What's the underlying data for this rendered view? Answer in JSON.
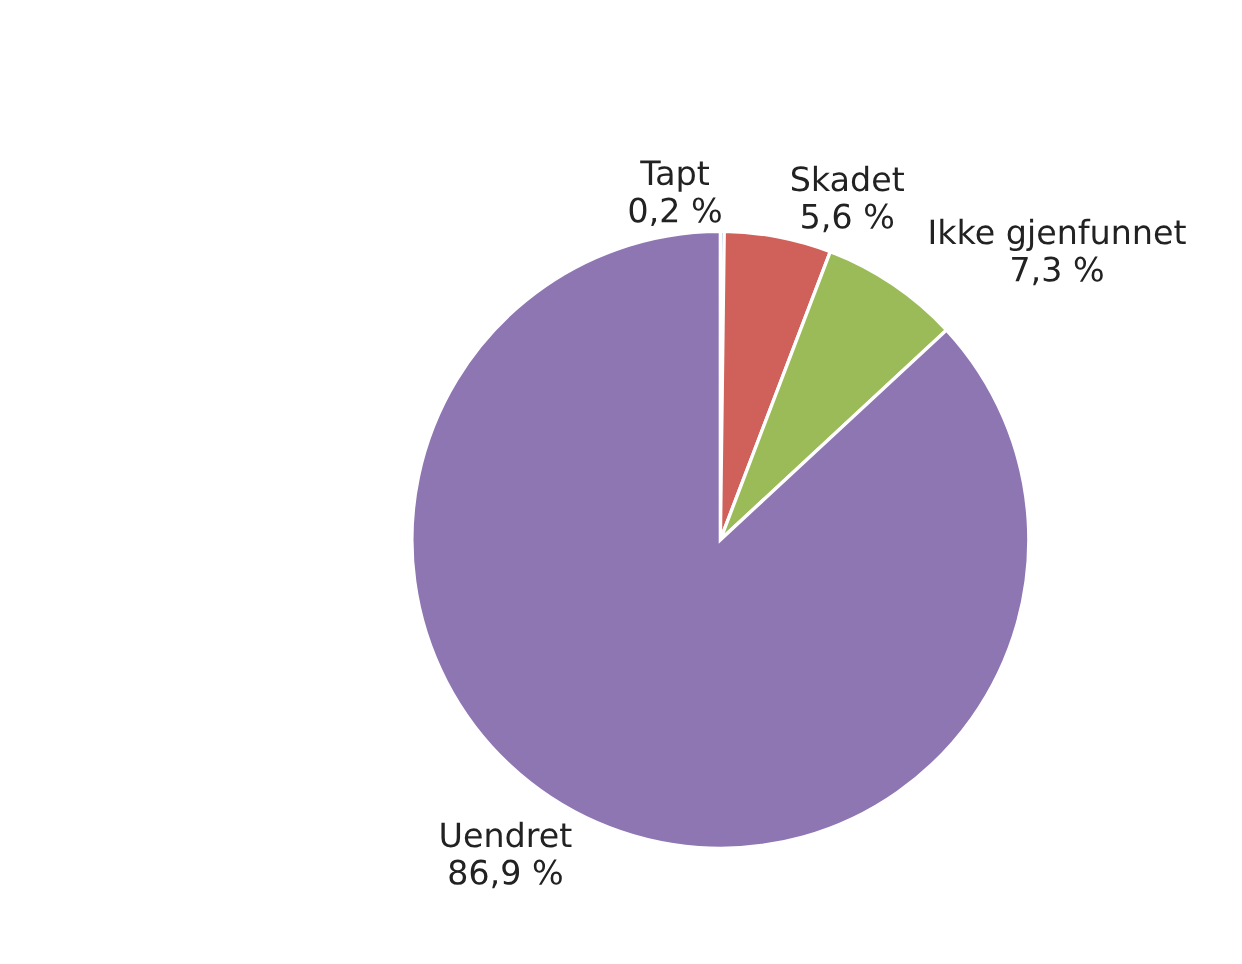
{
  "chart_data": {
    "type": "pie",
    "categories": [
      "Tapt",
      "Skadet",
      "Ikke gjenfunnet",
      "Uendret"
    ],
    "values": [
      0.2,
      5.6,
      7.3,
      86.9
    ],
    "value_labels": [
      "0,2 %",
      "5,6 %",
      "7,3 %",
      "86,9 %"
    ],
    "colors": [
      "#4f81bd",
      "#d0605a",
      "#9bbb59",
      "#8e76b3"
    ]
  }
}
